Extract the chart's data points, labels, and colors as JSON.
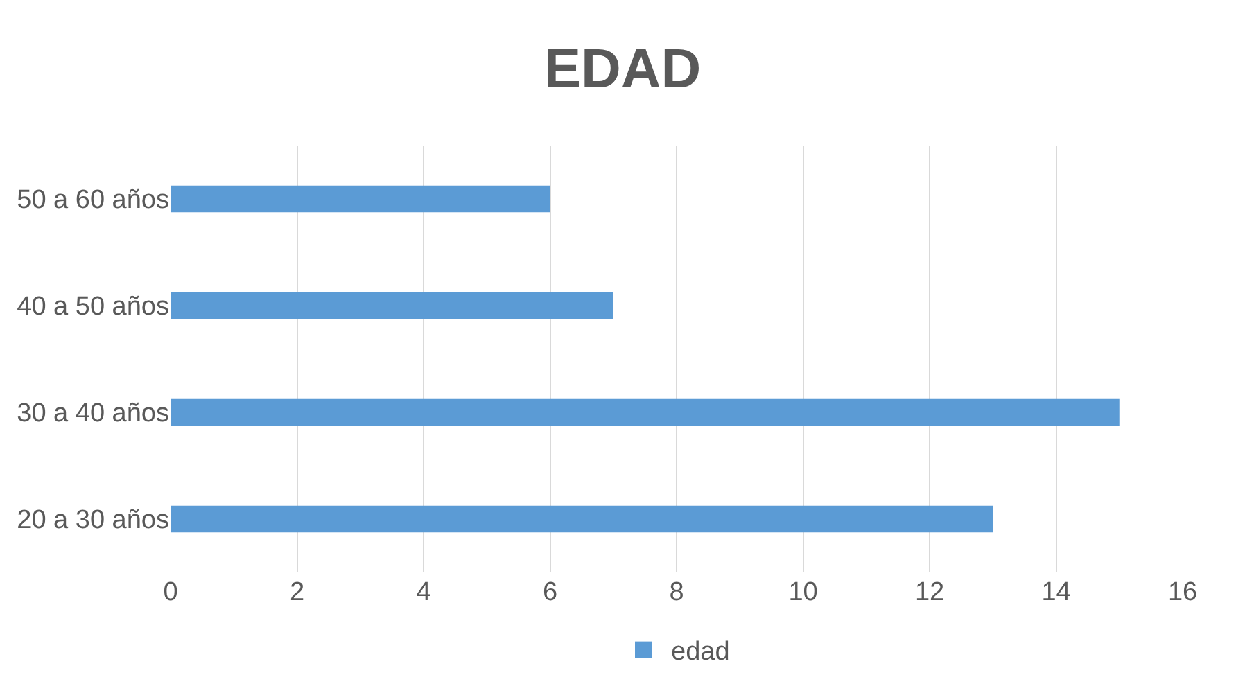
{
  "chart_data": {
    "type": "bar",
    "title": "EDAD",
    "orientation": "horizontal",
    "categories": [
      "50 a 60 años",
      "40 a 50 años",
      "30 a 40 años",
      "20 a 30 años"
    ],
    "series": [
      {
        "name": "edad",
        "color": "#5b9bd5",
        "values": [
          6,
          7,
          15,
          13
        ]
      }
    ],
    "xlim": [
      0,
      16
    ],
    "xticks": [
      0,
      2,
      4,
      6,
      8,
      10,
      12,
      14,
      16
    ],
    "grid": "x",
    "legend": "bottom"
  }
}
